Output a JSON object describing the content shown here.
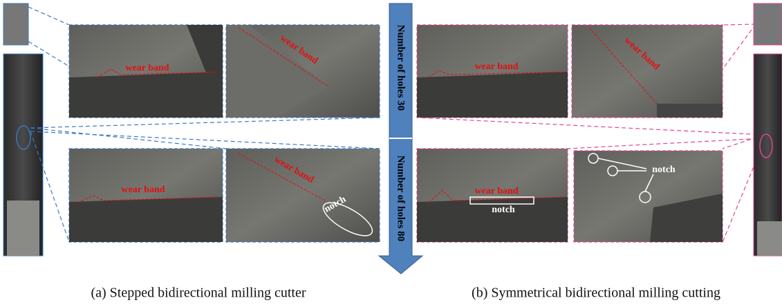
{
  "arrow_labels": [
    "Number of holes 30",
    "Number of holes 80"
  ],
  "left": {
    "panels": [
      {
        "labels": [
          "wear band"
        ]
      },
      {
        "labels": [
          "wear band"
        ]
      },
      {
        "labels": [
          "wear band"
        ]
      },
      {
        "labels": [
          "wear band",
          "notch"
        ]
      }
    ],
    "caption": "(a) Stepped bidirectional milling cutter"
  },
  "right": {
    "panels": [
      {
        "labels": [
          "wear band"
        ]
      },
      {
        "labels": [
          "wear band"
        ]
      },
      {
        "labels": [
          "wear band",
          "notch"
        ]
      },
      {
        "labels": [
          "notch"
        ]
      }
    ],
    "caption": "(b) Symmetrical bidirectional milling cutting"
  }
}
